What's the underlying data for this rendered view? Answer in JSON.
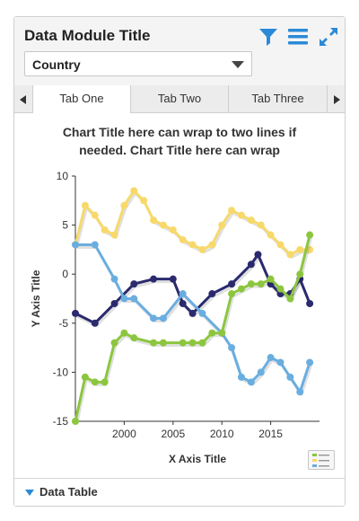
{
  "module": {
    "title": "Data Module Title",
    "icons": [
      "filter-icon",
      "menu-icon",
      "expand-icon"
    ],
    "accent_color": "#2b8ad8"
  },
  "dropdown": {
    "selected": "Country"
  },
  "tabs": [
    {
      "label": "Tab One",
      "active": true
    },
    {
      "label": "Tab Two",
      "active": false
    },
    {
      "label": "Tab Three",
      "active": false
    }
  ],
  "footer": {
    "data_table_label": "Data Table"
  },
  "chart_data": {
    "type": "line",
    "title": "Chart Title here can wrap to two lines if needed. Chart Title here can wrap",
    "title_lines": [
      "Chart Title here can wrap to two lines if",
      "needed. Chart Title here can wrap"
    ],
    "xlabel": "X Axis Title",
    "ylabel": "Y Axis Title",
    "xlim": [
      1995,
      2020
    ],
    "ylim": [
      -15,
      10
    ],
    "xticks": [
      2000,
      2005,
      2010,
      2015
    ],
    "yticks": [
      10,
      5,
      0,
      -5,
      -10,
      -15
    ],
    "grid": false,
    "legend": "bottom-right",
    "series": [
      {
        "color": "#f7d96b",
        "x": [
          1995,
          1996,
          1997,
          1998,
          1999,
          2000,
          2001,
          2002,
          2003,
          2004,
          2005,
          2006,
          2007,
          2008,
          2009,
          2010,
          2011,
          2012,
          2013,
          2014,
          2015,
          2016,
          2017,
          2018,
          2019
        ],
        "y": [
          3,
          7,
          6,
          4.5,
          4,
          7,
          8.5,
          7.5,
          5.5,
          5,
          4.5,
          3.5,
          3,
          2.5,
          3,
          5,
          6.5,
          6,
          5.5,
          5,
          4,
          3,
          2,
          2.5,
          2.5
        ]
      },
      {
        "color": "#2b2a6e",
        "x": [
          1995,
          1997,
          1999,
          2001,
          2003,
          2005,
          2006,
          2007,
          2009,
          2011,
          2013,
          2013.7,
          2015,
          2016,
          2017,
          2018,
          2019
        ],
        "y": [
          -4,
          -5,
          -3,
          -1,
          -0.5,
          -0.5,
          -3,
          -4,
          -2,
          -1,
          1,
          2,
          -1,
          -2,
          -2,
          -0.5,
          -3
        ]
      },
      {
        "color": "#6aaee0",
        "x": [
          1995,
          1997,
          1999,
          2000,
          2001,
          2003,
          2004,
          2006,
          2008,
          2010,
          2011,
          2012,
          2013,
          2014,
          2015,
          2016,
          2017,
          2018,
          2019
        ],
        "y": [
          3,
          3,
          -0.5,
          -2.5,
          -2.5,
          -4.5,
          -4.5,
          -2,
          -4,
          -6,
          -7.5,
          -10.5,
          -11,
          -10,
          -8.5,
          -9,
          -10.5,
          -12,
          -9
        ]
      },
      {
        "color": "#8cc63f",
        "x": [
          1995,
          1996,
          1997,
          1998,
          1999,
          2000,
          2001,
          2003,
          2004,
          2006,
          2007,
          2008,
          2009,
          2010,
          2011,
          2012,
          2013,
          2014,
          2015,
          2016,
          2017,
          2018,
          2019
        ],
        "y": [
          -15,
          -10.5,
          -11,
          -11,
          -7,
          -6,
          -6.5,
          -7,
          -7,
          -7,
          -7,
          -7,
          -6,
          -6,
          -2,
          -1.5,
          -1,
          -1,
          -0.5,
          -1.5,
          -2.5,
          0,
          4
        ]
      }
    ]
  }
}
